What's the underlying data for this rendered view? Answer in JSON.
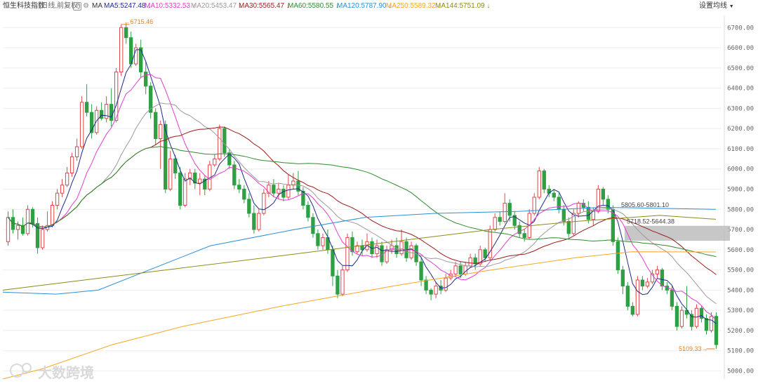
{
  "header": {
    "instrument": "恒生科技指数",
    "period": "(日线,前复权)",
    "help_icon_label": "?",
    "ma_label": "MA",
    "ma_items": [
      {
        "text": "MA5:5247.48",
        "color": "#1f2a8a"
      },
      {
        "text": "MA10:5332.53",
        "color": "#e040c8"
      },
      {
        "text": "MA20:5453.47",
        "color": "#9a9a9a"
      },
      {
        "text": "MA30:5565.47",
        "color": "#9b1b1b"
      },
      {
        "text": "MA60:5580.55",
        "color": "#2e8b2e"
      },
      {
        "text": "MA120:5787.90",
        "color": "#2a8fd6"
      },
      {
        "text": "MA250:5589.32",
        "color": "#f5a623"
      },
      {
        "text": "MA144:5751.09",
        "color": "#8b8b1a"
      }
    ],
    "down_arrow": "↓",
    "settings_label": "设置均线",
    "settings_icon": "caret-down-icon"
  },
  "annotations": {
    "high_label": "6715.46",
    "low_label": "5109.33",
    "zone_label_top": "5805.60-5801.10",
    "zone_label_mid": "5718.52-5644.38"
  },
  "watermark": {
    "text": "大数跨境"
  },
  "colors": {
    "up": "#e0474c",
    "down": "#2ea043",
    "grid": "#eeeeee",
    "zone": "#bdbdbd"
  },
  "chart_data": {
    "type": "candlestick",
    "y_ticks": [
      "6700.00",
      "6600.00",
      "6500.00",
      "6400.00",
      "6300.00",
      "6200.00",
      "6100.00",
      "6000.00",
      "5900.00",
      "5800.00",
      "5700.00",
      "5600.00",
      "5500.00",
      "5400.00",
      "5300.00",
      "5200.00",
      "5100.00",
      "5000.00"
    ],
    "ylim": [
      4960,
      6760
    ],
    "high_value": 6715.46,
    "low_value": 5109.33,
    "zones": [
      [
        5644.38,
        5718.52
      ]
    ],
    "candles": [
      [
        5640,
        5760,
        5790,
        5620
      ],
      [
        5760,
        5700,
        5800,
        5680
      ],
      [
        5700,
        5720,
        5740,
        5650
      ],
      [
        5720,
        5680,
        5760,
        5670
      ],
      [
        5680,
        5800,
        5820,
        5670
      ],
      [
        5800,
        5730,
        5810,
        5710
      ],
      [
        5730,
        5610,
        5760,
        5580
      ],
      [
        5610,
        5700,
        5720,
        5600
      ],
      [
        5700,
        5720,
        5790,
        5690
      ],
      [
        5720,
        5820,
        5840,
        5710
      ],
      [
        5820,
        5880,
        5900,
        5800
      ],
      [
        5880,
        5920,
        5950,
        5860
      ],
      [
        5920,
        5980,
        6010,
        5910
      ],
      [
        5980,
        6060,
        6080,
        5960
      ],
      [
        6060,
        6110,
        6150,
        6040
      ],
      [
        6110,
        6330,
        6360,
        6100
      ],
      [
        6330,
        6280,
        6420,
        6260
      ],
      [
        6280,
        6180,
        6320,
        6150
      ],
      [
        6180,
        6290,
        6310,
        6170
      ],
      [
        6290,
        6250,
        6330,
        6240
      ],
      [
        6250,
        6320,
        6360,
        6230
      ],
      [
        6320,
        6240,
        6400,
        6210
      ],
      [
        6240,
        6480,
        6500,
        6230
      ],
      [
        6480,
        6700,
        6715,
        6460
      ],
      [
        6700,
        6650,
        6720,
        6620
      ],
      [
        6650,
        6520,
        6680,
        6500
      ],
      [
        6520,
        6600,
        6620,
        6510
      ],
      [
        6600,
        6480,
        6640,
        6450
      ],
      [
        6480,
        6410,
        6530,
        6370
      ],
      [
        6410,
        6280,
        6430,
        6250
      ],
      [
        6280,
        6150,
        6300,
        6120
      ],
      [
        6150,
        6220,
        6240,
        6000
      ],
      [
        6220,
        5900,
        6240,
        5880
      ],
      [
        5900,
        6050,
        6090,
        5890
      ],
      [
        6050,
        5980,
        6070,
        5950
      ],
      [
        5980,
        5820,
        6010,
        5800
      ],
      [
        5820,
        5950,
        5980,
        5810
      ],
      [
        5950,
        5980,
        6000,
        5920
      ],
      [
        5980,
        5930,
        6000,
        5900
      ],
      [
        5930,
        5950,
        5980,
        5870
      ],
      [
        5950,
        5900,
        5970,
        5870
      ],
      [
        5900,
        6020,
        6040,
        5890
      ],
      [
        6020,
        6050,
        6070,
        6010
      ],
      [
        6050,
        6200,
        6220,
        6040
      ],
      [
        6200,
        6080,
        6210,
        6060
      ],
      [
        6080,
        6020,
        6100,
        6000
      ],
      [
        6020,
        5920,
        6040,
        5900
      ],
      [
        5920,
        5900,
        5950,
        5880
      ],
      [
        5900,
        5850,
        5920,
        5830
      ],
      [
        5850,
        5780,
        5880,
        5760
      ],
      [
        5780,
        5700,
        5820,
        5680
      ],
      [
        5700,
        5780,
        5800,
        5690
      ],
      [
        5780,
        5880,
        5900,
        5770
      ],
      [
        5880,
        5920,
        5940,
        5860
      ],
      [
        5920,
        5880,
        5950,
        5860
      ],
      [
        5880,
        5900,
        5930,
        5850
      ],
      [
        5900,
        5860,
        5920,
        5840
      ],
      [
        5860,
        5920,
        5970,
        5850
      ],
      [
        5920,
        5940,
        5980,
        5900
      ],
      [
        5940,
        5890,
        5990,
        5870
      ],
      [
        5890,
        5820,
        5910,
        5800
      ],
      [
        5820,
        5760,
        5840,
        5740
      ],
      [
        5760,
        5680,
        5780,
        5660
      ],
      [
        5680,
        5620,
        5700,
        5600
      ],
      [
        5620,
        5660,
        5680,
        5600
      ],
      [
        5660,
        5600,
        5700,
        5580
      ],
      [
        5600,
        5470,
        5620,
        5420
      ],
      [
        5470,
        5380,
        5500,
        5360
      ],
      [
        5380,
        5500,
        5520,
        5370
      ],
      [
        5500,
        5660,
        5680,
        5490
      ],
      [
        5660,
        5590,
        5690,
        5570
      ],
      [
        5590,
        5620,
        5640,
        5580
      ],
      [
        5620,
        5600,
        5650,
        5570
      ],
      [
        5600,
        5640,
        5680,
        5590
      ],
      [
        5640,
        5580,
        5660,
        5560
      ],
      [
        5580,
        5620,
        5650,
        5560
      ],
      [
        5620,
        5540,
        5640,
        5520
      ],
      [
        5540,
        5600,
        5620,
        5530
      ],
      [
        5600,
        5620,
        5650,
        5580
      ],
      [
        5620,
        5580,
        5660,
        5560
      ],
      [
        5580,
        5640,
        5700,
        5570
      ],
      [
        5640,
        5560,
        5660,
        5540
      ],
      [
        5560,
        5620,
        5640,
        5550
      ],
      [
        5620,
        5540,
        5630,
        5520
      ],
      [
        5540,
        5450,
        5560,
        5420
      ],
      [
        5450,
        5400,
        5470,
        5380
      ],
      [
        5400,
        5380,
        5410,
        5350
      ],
      [
        5380,
        5420,
        5440,
        5360
      ],
      [
        5420,
        5400,
        5450,
        5380
      ],
      [
        5400,
        5460,
        5480,
        5390
      ],
      [
        5460,
        5480,
        5500,
        5450
      ],
      [
        5480,
        5520,
        5540,
        5470
      ],
      [
        5520,
        5480,
        5540,
        5460
      ],
      [
        5480,
        5520,
        5540,
        5470
      ],
      [
        5520,
        5560,
        5580,
        5510
      ],
      [
        5560,
        5530,
        5580,
        5500
      ],
      [
        5530,
        5600,
        5620,
        5520
      ],
      [
        5600,
        5560,
        5610,
        5540
      ],
      [
        5560,
        5700,
        5720,
        5550
      ],
      [
        5700,
        5760,
        5780,
        5690
      ],
      [
        5760,
        5740,
        5790,
        5720
      ],
      [
        5740,
        5830,
        5880,
        5730
      ],
      [
        5830,
        5770,
        5850,
        5740
      ],
      [
        5770,
        5720,
        5790,
        5700
      ],
      [
        5720,
        5680,
        5740,
        5660
      ],
      [
        5680,
        5660,
        5700,
        5640
      ],
      [
        5660,
        5780,
        5800,
        5650
      ],
      [
        5780,
        5860,
        5880,
        5770
      ],
      [
        5860,
        5990,
        6010,
        5850
      ],
      [
        5990,
        5900,
        6000,
        5880
      ],
      [
        5900,
        5880,
        5920,
        5860
      ],
      [
        5880,
        5860,
        5900,
        5840
      ],
      [
        5860,
        5800,
        5880,
        5780
      ],
      [
        5800,
        5740,
        5820,
        5720
      ],
      [
        5740,
        5680,
        5760,
        5660
      ],
      [
        5680,
        5780,
        5800,
        5670
      ],
      [
        5780,
        5830,
        5840,
        5760
      ],
      [
        5830,
        5810,
        5850,
        5790
      ],
      [
        5810,
        5750,
        5840,
        5730
      ],
      [
        5750,
        5790,
        5810,
        5720
      ],
      [
        5790,
        5900,
        5920,
        5780
      ],
      [
        5900,
        5850,
        5910,
        5820
      ],
      [
        5850,
        5800,
        5870,
        5780
      ],
      [
        5800,
        5640,
        5820,
        5620
      ],
      [
        5640,
        5500,
        5660,
        5480
      ],
      [
        5500,
        5420,
        5520,
        5380
      ],
      [
        5420,
        5320,
        5440,
        5300
      ],
      [
        5320,
        5280,
        5340,
        5270
      ],
      [
        5280,
        5450,
        5470,
        5270
      ],
      [
        5450,
        5420,
        5470,
        5400
      ],
      [
        5420,
        5440,
        5460,
        5410
      ],
      [
        5440,
        5480,
        5500,
        5430
      ],
      [
        5480,
        5500,
        5520,
        5460
      ],
      [
        5500,
        5420,
        5510,
        5400
      ],
      [
        5420,
        5400,
        5440,
        5380
      ],
      [
        5400,
        5320,
        5420,
        5300
      ],
      [
        5320,
        5220,
        5340,
        5200
      ],
      [
        5220,
        5300,
        5320,
        5210
      ],
      [
        5300,
        5280,
        5420,
        5260
      ],
      [
        5280,
        5220,
        5300,
        5200
      ],
      [
        5220,
        5310,
        5330,
        5210
      ],
      [
        5310,
        5260,
        5320,
        5240
      ],
      [
        5260,
        5200,
        5280,
        5180
      ],
      [
        5200,
        5270,
        5290,
        5190
      ],
      [
        5270,
        5130,
        5290,
        5109
      ]
    ]
  }
}
